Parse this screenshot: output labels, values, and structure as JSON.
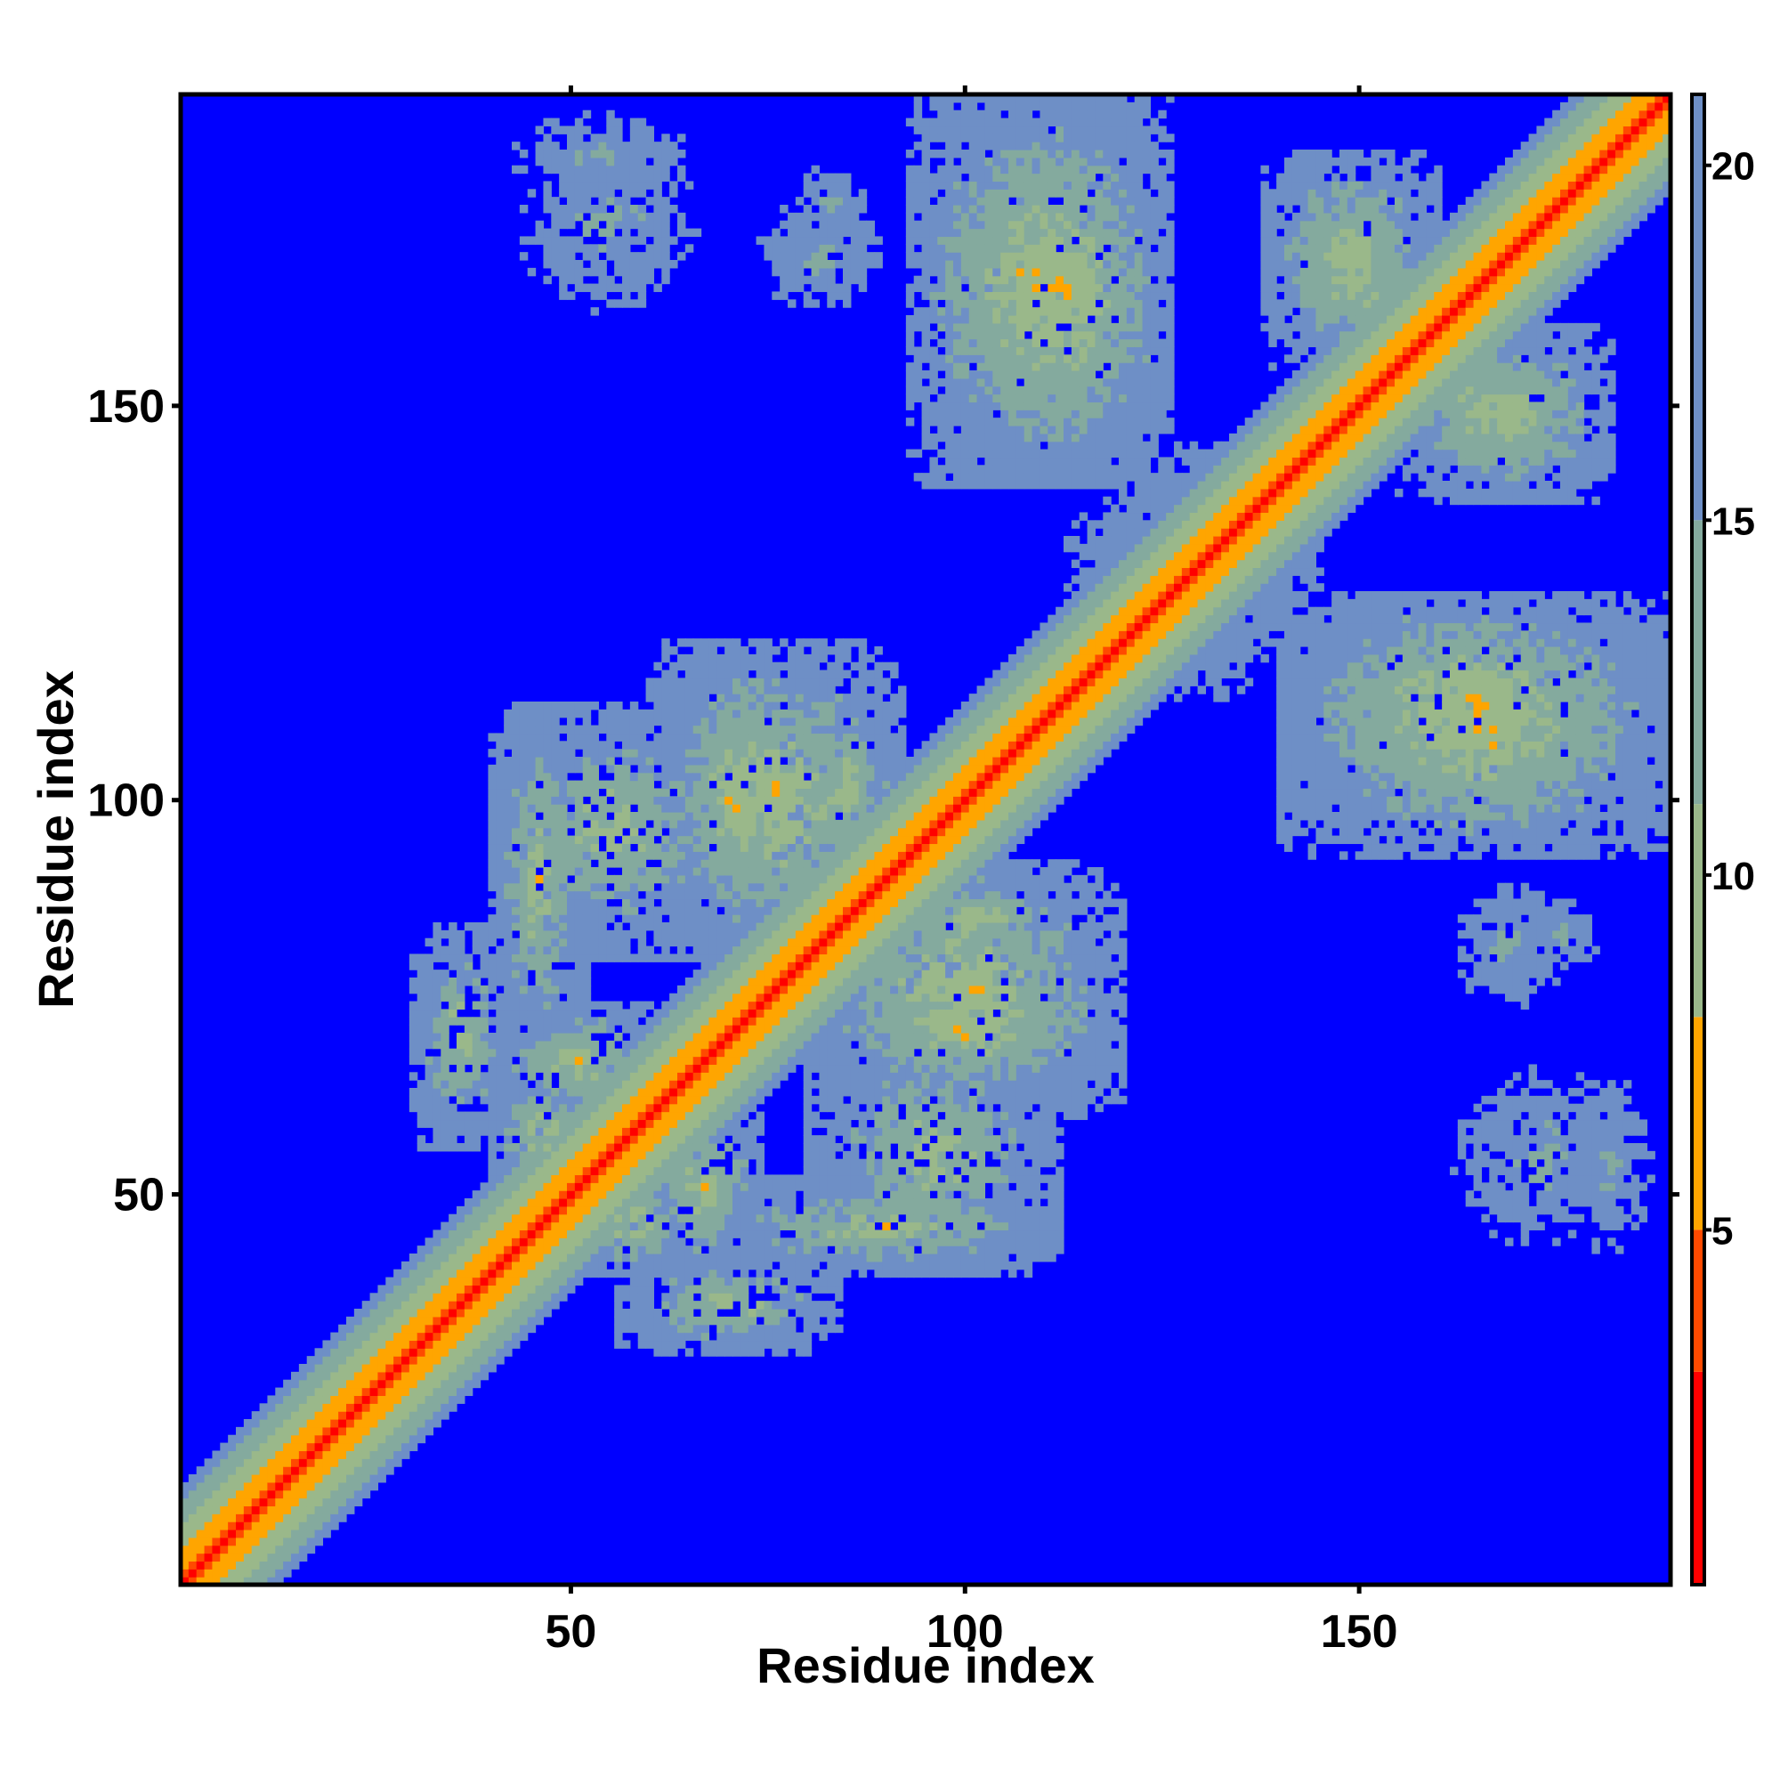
{
  "chart_data": {
    "type": "heatmap",
    "title": "",
    "xlabel": "Residue index",
    "ylabel": "Residue index",
    "xlim": [
      1,
      189
    ],
    "ylim": [
      1,
      189
    ],
    "n_residues": 189,
    "x_ticks": [
      50,
      100,
      150
    ],
    "y_ticks": [
      50,
      100,
      150
    ],
    "colorbar": {
      "ticks": [
        5,
        10,
        15,
        20
      ],
      "range": [
        0,
        21
      ],
      "colors": {
        "lt3": "#ff0000",
        "3to5": "#ff4a00",
        "5to8": "#ffa500",
        "8to11": "#9ab88a",
        "11to15": "#84aa9e",
        "15to21": "#6e8fc6",
        "ge21": "#0000ff"
      }
    },
    "background_value": 21,
    "diagonal_band": {
      "description": "distance increases with |i-j|",
      "values_by_offset": [
        0,
        3.8,
        5.5,
        6.5,
        7.5,
        8.5,
        9.5,
        10.5,
        11.5,
        12.5,
        13.5,
        15,
        17
      ]
    },
    "contact_regions": [
      {
        "x": [
          40,
          52
        ],
        "y": [
          68,
          112
        ],
        "min": 6.5
      },
      {
        "x": [
          52,
          64
        ],
        "y": [
          40,
          52
        ],
        "min": 6.0
      },
      {
        "x": [
          62,
          80
        ],
        "y": [
          82,
          118
        ],
        "min": 6.0
      },
      {
        "x": [
          78,
          92
        ],
        "y": [
          90,
          112
        ],
        "min": 6.5
      },
      {
        "x": [
          80,
          120
        ],
        "y": [
          60,
          92
        ],
        "min": 6.0
      },
      {
        "x": [
          80,
          112
        ],
        "y": [
          40,
          70
        ],
        "min": 7.0
      },
      {
        "x": [
          60,
          74
        ],
        "y": [
          40,
          62
        ],
        "min": 6.5
      },
      {
        "x": [
          30,
          42
        ],
        "y": [
          56,
          84
        ],
        "min": 7.0
      },
      {
        "x": [
          40,
          68
        ],
        "y": [
          176,
          188
        ],
        "min": 11.0
      },
      {
        "x": [
          78,
          88
        ],
        "y": [
          168,
          182
        ],
        "min": 11.0
      },
      {
        "x": [
          93,
          123
        ],
        "y": [
          140,
          190
        ],
        "min": 6.0
      },
      {
        "x": [
          113,
          145
        ],
        "y": [
          118,
          140
        ],
        "min": 8.0
      },
      {
        "x": [
          138,
          160
        ],
        "y": [
          158,
          182
        ],
        "min": 6.5
      },
      {
        "x": [
          155,
          178
        ],
        "y": [
          138,
          160
        ],
        "min": 6.5
      },
      {
        "x": [
          140,
          189
        ],
        "y": [
          98,
          126
        ],
        "min": 5.5
      },
      {
        "x": [
          160,
          178
        ],
        "y": [
          72,
          92
        ],
        "min": 11.0
      },
      {
        "x": [
          160,
          186
        ],
        "y": [
          42,
          68
        ],
        "min": 11.0
      },
      {
        "x": [
          164,
          178
        ],
        "y": [
          96,
          108
        ],
        "min": 11.0
      }
    ]
  }
}
